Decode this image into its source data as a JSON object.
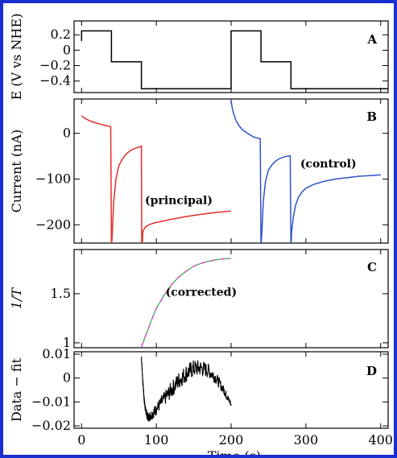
{
  "figure": {
    "xlabel": "Time (s)",
    "xticks": [
      "0",
      "100",
      "200",
      "300",
      "400"
    ]
  },
  "chart_data": [
    {
      "panel": "A",
      "type": "line",
      "ylabel": "E (V vs NHE)",
      "xlim": [
        -10,
        410
      ],
      "ylim": [
        -0.55,
        0.38
      ],
      "yticks": [
        {
          "value": 0.2,
          "label": "0.2"
        },
        {
          "value": 0,
          "label": "0"
        },
        {
          "value": -0.2,
          "label": "−0.2"
        },
        {
          "value": -0.4,
          "label": "−0.4"
        }
      ],
      "color": "#000000",
      "x": [
        0,
        0,
        40,
        40,
        80,
        80,
        200,
        200,
        240,
        240,
        280,
        280,
        410
      ],
      "y": [
        0.12,
        0.25,
        0.25,
        -0.15,
        -0.15,
        -0.5,
        -0.5,
        0.25,
        0.25,
        -0.15,
        -0.15,
        -0.5,
        -0.5
      ]
    },
    {
      "panel": "B",
      "type": "line",
      "ylabel": "Current (nA)",
      "xlim": [
        -10,
        410
      ],
      "ylim": [
        -240,
        75
      ],
      "yticks": [
        {
          "value": 0,
          "label": "0"
        },
        {
          "value": -100,
          "label": "−100"
        },
        {
          "value": -200,
          "label": "−200"
        }
      ],
      "annotations": [
        {
          "text": "(principal)",
          "x": 130,
          "y": -155
        },
        {
          "text": "(control)",
          "x": 330,
          "y": -75
        }
      ],
      "series": [
        {
          "color": "#e0302a",
          "x": [
            0,
            5,
            10,
            20,
            30,
            38,
            39,
            40,
            41,
            43,
            46,
            50,
            55,
            60,
            65,
            70,
            75,
            79,
            80,
            80.5,
            81,
            82,
            84,
            86,
            90,
            95,
            100,
            120,
            140,
            160,
            180,
            200
          ],
          "y": [
            38,
            32,
            28,
            22,
            18,
            15,
            14,
            -250,
            -220,
            -150,
            -100,
            -70,
            -55,
            -45,
            -38,
            -34,
            -31,
            -29,
            -28,
            -250,
            -250,
            -215,
            -208,
            -204,
            -200,
            -197,
            -195,
            -188,
            -182,
            -177,
            -173,
            -170
          ]
        },
        {
          "color": "#2f53c8",
          "x": [
            200,
            201,
            203,
            206,
            210,
            215,
            220,
            230,
            239,
            240,
            241,
            243,
            246,
            250,
            255,
            260,
            265,
            270,
            275,
            279,
            280,
            281,
            283,
            286,
            290,
            295,
            300,
            310,
            320,
            330,
            340,
            350,
            360,
            370,
            380,
            390,
            400
          ],
          "y": [
            75,
            60,
            45,
            30,
            18,
            8,
            2,
            -8,
            -12,
            -250,
            -220,
            -150,
            -105,
            -80,
            -68,
            -60,
            -55,
            -52,
            -50,
            -49,
            -250,
            -215,
            -185,
            -158,
            -140,
            -128,
            -120,
            -112,
            -107,
            -103,
            -100,
            -98,
            -96,
            -94,
            -93,
            -92,
            -91
          ]
        }
      ]
    },
    {
      "panel": "C",
      "type": "line",
      "ylabel": "1/T",
      "xlim": [
        -10,
        410
      ],
      "ylim": [
        0.95,
        1.95
      ],
      "yticks": [
        {
          "value": 1,
          "label": "1"
        },
        {
          "value": 1.5,
          "label": "1.5"
        }
      ],
      "annotations": [
        {
          "text": "(corrected)",
          "x": 160,
          "y": 1.48
        }
      ],
      "series": [
        {
          "color": "#d04fb8",
          "dashed": true,
          "x": [
            80,
            85,
            90,
            95,
            100,
            110,
            120,
            130,
            140,
            150,
            160,
            170,
            180,
            190,
            200
          ],
          "y": [
            0.96,
            1.06,
            1.16,
            1.26,
            1.35,
            1.48,
            1.59,
            1.67,
            1.73,
            1.78,
            1.81,
            1.83,
            1.845,
            1.855,
            1.86
          ]
        },
        {
          "color": "#49b86b",
          "dashed": true,
          "dash_offset": true,
          "x": [
            80,
            85,
            90,
            95,
            100,
            110,
            120,
            130,
            140,
            150,
            160,
            170,
            180,
            190,
            200
          ],
          "y": [
            0.96,
            1.06,
            1.16,
            1.26,
            1.35,
            1.48,
            1.59,
            1.67,
            1.73,
            1.78,
            1.81,
            1.83,
            1.845,
            1.855,
            1.86
          ]
        }
      ]
    },
    {
      "panel": "D",
      "type": "line",
      "ylabel": "Data − fit",
      "xlim": [
        -10,
        410
      ],
      "ylim": [
        -0.021,
        0.011
      ],
      "yticks": [
        {
          "value": 0.01,
          "label": "0.01"
        },
        {
          "value": 0,
          "label": "0"
        },
        {
          "value": -0.01,
          "label": "−0.01"
        },
        {
          "value": -0.02,
          "label": "−0.02"
        }
      ],
      "color": "#000000",
      "noisy": true,
      "x": [
        80,
        82,
        84,
        86,
        88,
        90,
        95,
        100,
        110,
        120,
        130,
        140,
        150,
        160,
        170,
        180,
        190,
        195,
        200
      ],
      "y": [
        0.009,
        -0.002,
        -0.01,
        -0.014,
        -0.016,
        -0.0165,
        -0.015,
        -0.013,
        -0.009,
        -0.005,
        -0.001,
        0.002,
        0.004,
        0.0042,
        0.003,
        0.0,
        -0.005,
        -0.008,
        -0.011
      ]
    }
  ]
}
